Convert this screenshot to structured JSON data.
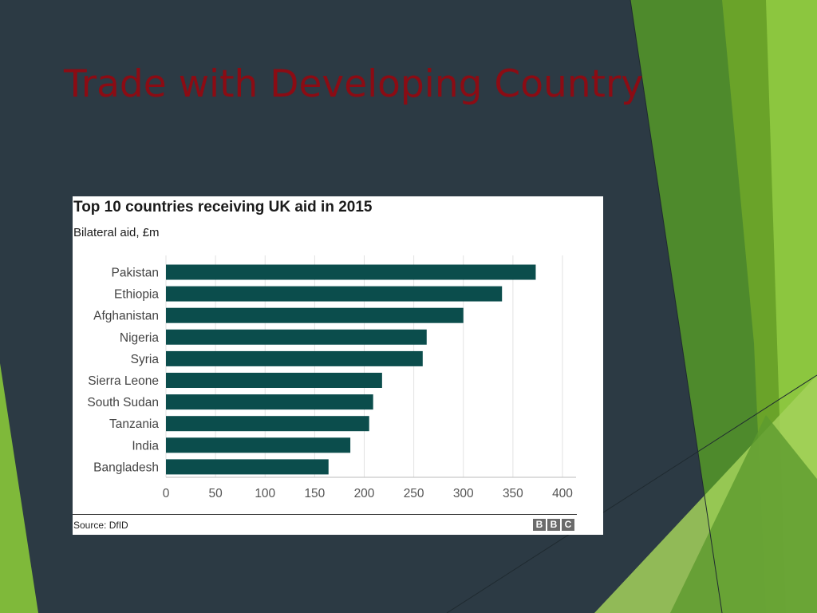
{
  "slide": {
    "title": "Trade with Developing Country",
    "title_color": "#8b0c14",
    "background_color": "#2c3a44",
    "accent_colors": [
      "#8cc63f",
      "#6aa329",
      "#4e8a2c",
      "#a3d15a"
    ]
  },
  "chart_data": {
    "type": "bar",
    "orientation": "horizontal",
    "title": "Top 10 countries receiving UK aid in 2015",
    "subtitle": "Bilateral aid, £m",
    "categories": [
      "Pakistan",
      "Ethiopia",
      "Afghanistan",
      "Nigeria",
      "Syria",
      "Sierra Leone",
      "South Sudan",
      "Tanzania",
      "India",
      "Bangladesh"
    ],
    "values": [
      373,
      339,
      300,
      263,
      259,
      218,
      209,
      205,
      186,
      164
    ],
    "xlim": [
      0,
      400
    ],
    "xticks": [
      "0",
      "50",
      "100",
      "150",
      "200",
      "250",
      "300",
      "350",
      "400"
    ],
    "grid": true,
    "bar_color": "#0b4d4c",
    "source": "Source: DfID",
    "logo": [
      "B",
      "B",
      "C"
    ]
  }
}
